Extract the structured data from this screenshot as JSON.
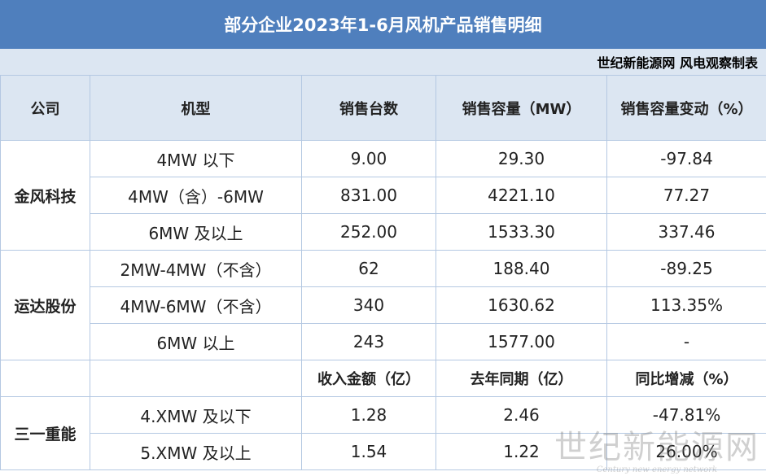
{
  "title": "部分企业2023年1-6月风机产品销售明细",
  "source": "世纪新能源网 风电观察制表",
  "header": [
    "公司",
    "机型",
    "销售台数",
    "销售容量（MW）",
    "销售容量变动（%）"
  ],
  "groups": [
    {
      "company": "金风科技",
      "rows": [
        [
          "4MW 以下",
          "9.00",
          "29.30",
          "-97.84"
        ],
        [
          "4MW（含）-6MW",
          "831.00",
          "4221.10",
          "77.27"
        ],
        [
          "6MW 及以上",
          "252.00",
          "1533.30",
          "337.46"
        ]
      ]
    },
    {
      "company": "运达股份",
      "rows": [
        [
          "2MW-4MW（不含）",
          "62",
          "188.40",
          "-89.25"
        ],
        [
          "4MW-6MW（不含）",
          "340",
          "1630.62",
          "113.35%"
        ],
        [
          "6MW 以上",
          "243",
          "1577.00",
          "-"
        ]
      ]
    }
  ],
  "subheader": [
    "收入金额（亿）",
    "去年同期（亿）",
    "同比增减（%）"
  ],
  "last_group": {
    "company": "三一重能",
    "rows": [
      [
        "4.XMW 及以下",
        "1.28",
        "2.46",
        "-47.81%"
      ],
      [
        "5.XMW 及以上",
        "1.54",
        "1.22",
        "26.00%"
      ]
    ]
  },
  "watermark": {
    "name": "世纪新能源网",
    "english": "Century new energy network"
  }
}
